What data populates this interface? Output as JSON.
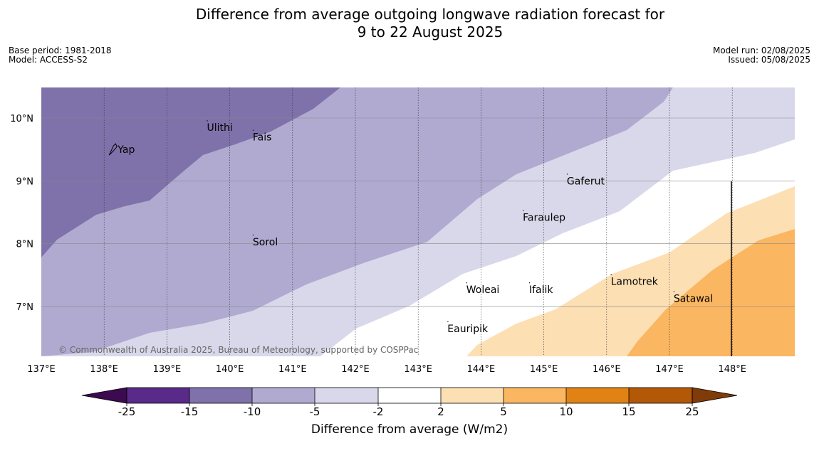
{
  "title_line1": "Difference from average outgoing longwave radiation forecast for",
  "title_line2": "9 to 22 August 2025",
  "base_period": "Base period: 1981-2018",
  "model": "Model: ACCESS-S2",
  "model_run": "Model run: 02/08/2025",
  "issued": "Issued: 05/08/2025",
  "copyright": "© Commonwealth of Australia 2025, Bureau of Meteorology, supported by COSPPac",
  "map": {
    "lon_range": [
      137,
      149
    ],
    "lat_range": [
      6.2,
      10.5
    ],
    "lon_ticks": [
      137,
      138,
      139,
      140,
      141,
      142,
      143,
      144,
      145,
      146,
      147,
      148
    ],
    "lon_tick_labels": [
      "137°E",
      "138°E",
      "139°E",
      "140°E",
      "141°E",
      "142°E",
      "143°E",
      "144°E",
      "145°E",
      "146°E",
      "147°E",
      "148°E"
    ],
    "lat_ticks": [
      7,
      8,
      9,
      10
    ],
    "lat_tick_labels": [
      "7°N",
      "8°N",
      "9°N",
      "10°N"
    ],
    "places": [
      {
        "name": "Ulithi",
        "lon": 139.67,
        "lat": 9.85
      },
      {
        "name": "Fais",
        "lon": 140.4,
        "lat": 9.7
      },
      {
        "name": "Yap",
        "lon": 138.25,
        "lat": 9.5
      },
      {
        "name": "Gaferut",
        "lon": 145.4,
        "lat": 9.0
      },
      {
        "name": "Faraulep",
        "lon": 144.7,
        "lat": 8.42
      },
      {
        "name": "Sorol",
        "lon": 140.4,
        "lat": 8.03
      },
      {
        "name": "Lamotrek",
        "lon": 146.1,
        "lat": 7.4
      },
      {
        "name": "Satawal",
        "lon": 147.1,
        "lat": 7.13
      },
      {
        "name": "Woleai",
        "lon": 143.8,
        "lat": 7.27
      },
      {
        "name": "Ifalik",
        "lon": 144.8,
        "lat": 7.27
      },
      {
        "name": "Eauripik",
        "lon": 143.5,
        "lat": 6.65
      }
    ]
  },
  "colors": {
    "c1": "#3b0a4f",
    "c2": "#5a2a8a",
    "c3": "#7f72aa",
    "c4": "#b0aad0",
    "c5": "#d8d8ea",
    "c6": "#ffffff",
    "c7": "#fddfb4",
    "c8": "#fbb661",
    "c9": "#e08214",
    "c10": "#b35806",
    "c11": "#7f3b08"
  },
  "colorbar": {
    "title": "Difference from average (W/m2)",
    "tick_labels": [
      "-25",
      "-15",
      "-10",
      "-5",
      "-2",
      "2",
      "5",
      "10",
      "15",
      "25"
    ]
  }
}
